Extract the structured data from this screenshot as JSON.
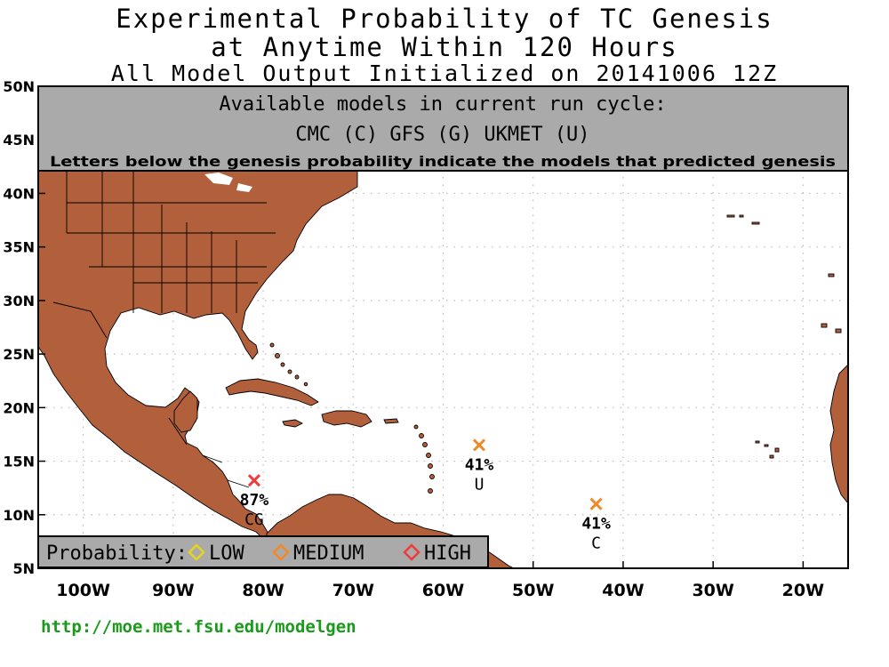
{
  "title": {
    "line1": "Experimental Probability of TC Genesis",
    "line2": "at Anytime Within 120 Hours",
    "line3": "All Model Output Initialized on 20141006 12Z"
  },
  "info_box": {
    "line1": "Available models in current run cycle:",
    "line2": "CMC (C) GFS (G)  UKMET (U)",
    "line3": "Letters below the genesis probability indicate the models that predicted genesis"
  },
  "legend": {
    "label": "Probability:",
    "items": [
      {
        "label": "LOW",
        "color": "#e6d41e"
      },
      {
        "label": "MEDIUM",
        "color": "#f0892a"
      },
      {
        "label": "HIGH",
        "color": "#ef3b3b"
      }
    ]
  },
  "axes": {
    "lon_ticks": [
      "100W",
      "90W",
      "80W",
      "70W",
      "60W",
      "50W",
      "40W",
      "30W",
      "20W"
    ],
    "lat_ticks": [
      "50N",
      "45N",
      "40N",
      "35N",
      "30N",
      "25N",
      "20N",
      "15N",
      "10N",
      "5N"
    ],
    "lon_range": [
      -105,
      -15
    ],
    "lat_range": [
      5,
      50
    ]
  },
  "genesis_points": [
    {
      "lon": -81,
      "lat": 13.2,
      "probability": "87%",
      "models": "CG",
      "level": "HIGH",
      "color": "#ef3b3b"
    },
    {
      "lon": -56,
      "lat": 16.5,
      "probability": "41%",
      "models": "U",
      "level": "MEDIUM",
      "color": "#f0892a"
    },
    {
      "lon": -43,
      "lat": 11.0,
      "probability": "41%",
      "models": "C",
      "level": "MEDIUM",
      "color": "#f0892a"
    }
  ],
  "colors": {
    "land": "#b2603b",
    "info_box": "#aaaaaa",
    "url": "#1a9a1a"
  },
  "footer_url": "http://moe.met.fsu.edu/modelgen"
}
